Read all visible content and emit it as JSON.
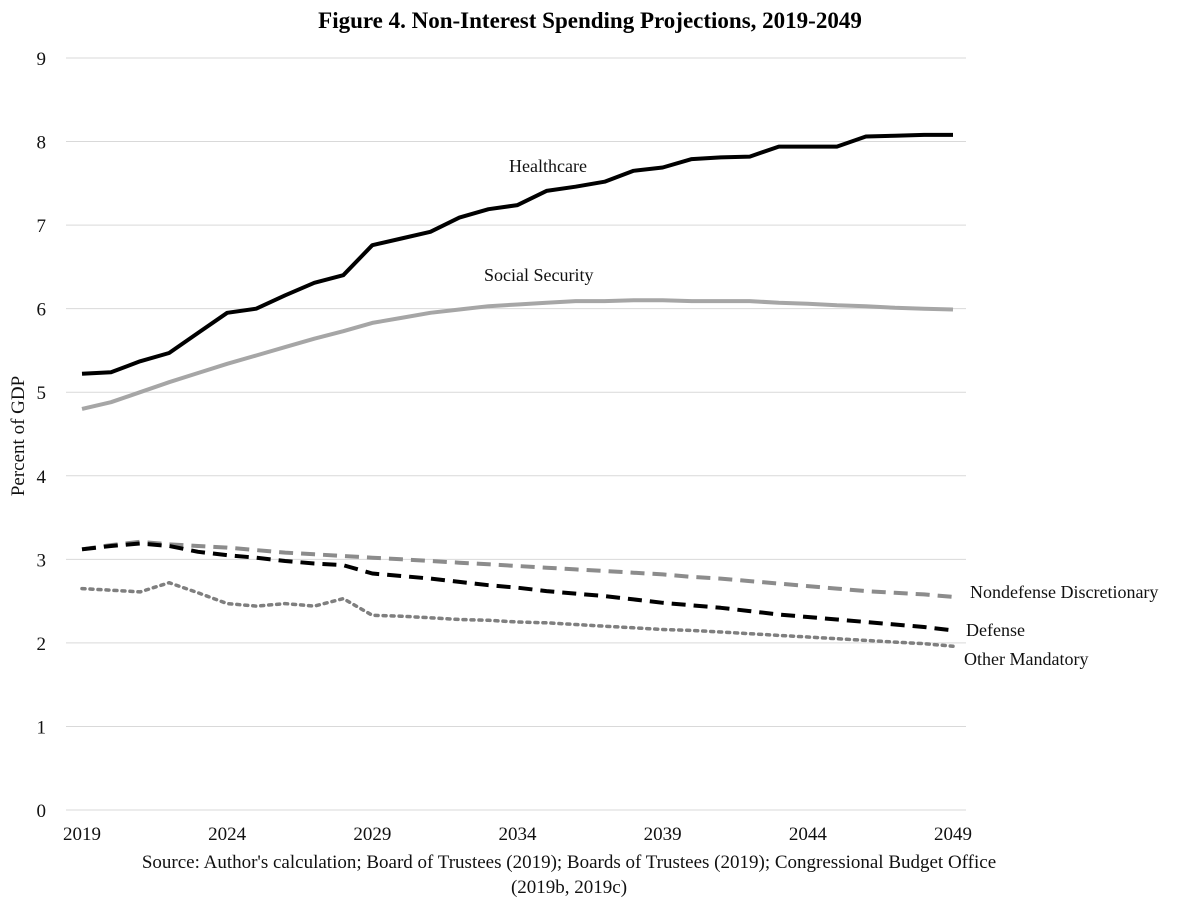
{
  "chart_data": {
    "type": "line",
    "title": "Figure 4. Non-Interest Spending Projections, 2019-2049",
    "ylabel": "Percent of GDP",
    "xlabel": "",
    "ylim": [
      0,
      9
    ],
    "xlim": [
      2019,
      2049
    ],
    "yticks": [
      "0",
      "1",
      "2",
      "3",
      "4",
      "5",
      "6",
      "7",
      "8",
      "9"
    ],
    "xticks": [
      "2019",
      "2024",
      "2029",
      "2034",
      "2039",
      "2044",
      "2049"
    ],
    "grid": "horizontal",
    "x": [
      2019,
      2020,
      2021,
      2022,
      2023,
      2024,
      2025,
      2026,
      2027,
      2028,
      2029,
      2030,
      2031,
      2032,
      2033,
      2034,
      2035,
      2036,
      2037,
      2038,
      2039,
      2040,
      2041,
      2042,
      2043,
      2044,
      2045,
      2046,
      2047,
      2048,
      2049
    ],
    "series": [
      {
        "name": "Healthcare",
        "color": "#000000",
        "style": "solid",
        "values": [
          5.22,
          5.24,
          5.37,
          5.47,
          5.71,
          5.95,
          6.0,
          6.16,
          6.31,
          6.4,
          6.76,
          6.84,
          6.92,
          7.09,
          7.19,
          7.24,
          7.41,
          7.46,
          7.52,
          7.65,
          7.69,
          7.79,
          7.81,
          7.82,
          7.94,
          7.94,
          7.94,
          8.06,
          8.07,
          8.08,
          8.08
        ]
      },
      {
        "name": "Social Security",
        "color": "#a6a6a6",
        "style": "solid",
        "values": [
          4.8,
          4.88,
          5.0,
          5.12,
          5.23,
          5.34,
          5.44,
          5.54,
          5.64,
          5.73,
          5.83,
          5.89,
          5.95,
          5.99,
          6.03,
          6.05,
          6.07,
          6.09,
          6.09,
          6.1,
          6.1,
          6.09,
          6.09,
          6.09,
          6.07,
          6.06,
          6.04,
          6.03,
          6.01,
          6.0,
          5.99
        ]
      },
      {
        "name": "Nondefense Discretionary",
        "color": "#8c8c8c",
        "style": "dashed",
        "values": [
          3.12,
          3.17,
          3.21,
          3.18,
          3.16,
          3.14,
          3.11,
          3.08,
          3.06,
          3.04,
          3.02,
          3.0,
          2.98,
          2.96,
          2.94,
          2.92,
          2.9,
          2.88,
          2.86,
          2.84,
          2.82,
          2.79,
          2.77,
          2.74,
          2.71,
          2.68,
          2.65,
          2.62,
          2.6,
          2.58,
          2.55
        ]
      },
      {
        "name": "Defense",
        "color": "#000000",
        "style": "dashed",
        "values": [
          3.12,
          3.16,
          3.19,
          3.16,
          3.09,
          3.05,
          3.02,
          2.98,
          2.95,
          2.93,
          2.83,
          2.8,
          2.77,
          2.73,
          2.69,
          2.66,
          2.62,
          2.59,
          2.56,
          2.52,
          2.48,
          2.45,
          2.42,
          2.38,
          2.34,
          2.31,
          2.28,
          2.25,
          2.22,
          2.19,
          2.15
        ]
      },
      {
        "name": "Other Mandatory",
        "color": "#7f7f7f",
        "style": "dotted",
        "values": [
          2.65,
          2.63,
          2.61,
          2.72,
          2.6,
          2.47,
          2.44,
          2.47,
          2.44,
          2.53,
          2.33,
          2.32,
          2.3,
          2.28,
          2.27,
          2.25,
          2.24,
          2.22,
          2.2,
          2.18,
          2.16,
          2.15,
          2.13,
          2.11,
          2.09,
          2.07,
          2.05,
          2.03,
          2.01,
          1.99,
          1.96
        ]
      }
    ],
    "source": [
      "Source: Author's calculation; Board of Trustees (2019); Boards of Trustees (2019); Congressional Budget Office",
      "(2019b, 2019c)"
    ]
  }
}
